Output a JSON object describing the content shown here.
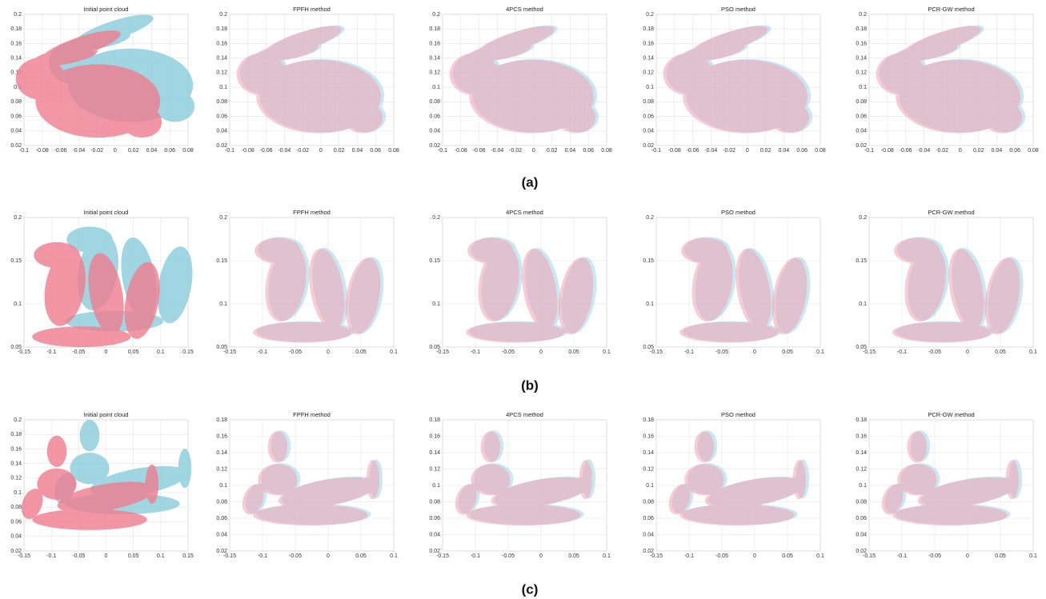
{
  "chart_data": [
    {
      "type": "scatter",
      "title": "Initial point cloud",
      "xlim": [
        -0.1,
        0.08
      ],
      "ylim": [
        0.02,
        0.2
      ],
      "xticks": [
        -0.1,
        -0.08,
        -0.06,
        -0.04,
        -0.02,
        0,
        0.02,
        0.04,
        0.06,
        0.08
      ],
      "yticks": [
        0.02,
        0.04,
        0.06,
        0.08,
        0.1,
        0.12,
        0.14,
        0.16,
        0.18,
        0.2
      ],
      "grid": true
    },
    {
      "type": "scatter",
      "title": "FPFH method",
      "xlim": [
        -0.1,
        0.08
      ],
      "ylim": [
        0.02,
        0.2
      ],
      "xticks": [
        -0.1,
        -0.08,
        -0.06,
        -0.04,
        -0.02,
        0,
        0.02,
        0.04,
        0.06,
        0.08
      ],
      "yticks": [
        0.02,
        0.04,
        0.06,
        0.08,
        0.1,
        0.12,
        0.14,
        0.16,
        0.18,
        0.2
      ],
      "grid": true
    },
    {
      "type": "scatter",
      "title": "4PCS method",
      "xlim": [
        -0.1,
        0.08
      ],
      "ylim": [
        0.02,
        0.2
      ],
      "xticks": [
        -0.1,
        -0.08,
        -0.06,
        -0.04,
        -0.02,
        0,
        0.02,
        0.04,
        0.06,
        0.08
      ],
      "yticks": [
        0.02,
        0.04,
        0.06,
        0.08,
        0.1,
        0.12,
        0.14,
        0.16,
        0.18,
        0.2
      ],
      "grid": true
    },
    {
      "type": "scatter",
      "title": "PSO method",
      "xlim": [
        -0.1,
        0.08
      ],
      "ylim": [
        0.02,
        0.2
      ],
      "xticks": [
        -0.1,
        -0.08,
        -0.06,
        -0.04,
        -0.02,
        0,
        0.02,
        0.04,
        0.06,
        0.08
      ],
      "yticks": [
        0.02,
        0.04,
        0.06,
        0.08,
        0.1,
        0.12,
        0.14,
        0.16,
        0.18,
        0.2
      ],
      "grid": true
    },
    {
      "type": "scatter",
      "title": "PCR-GW method",
      "xlim": [
        -0.1,
        0.08
      ],
      "ylim": [
        0.02,
        0.2
      ],
      "xticks": [
        -0.1,
        -0.08,
        -0.06,
        -0.04,
        -0.02,
        0,
        0.02,
        0.04,
        0.06,
        0.08
      ],
      "yticks": [
        0.02,
        0.04,
        0.06,
        0.08,
        0.1,
        0.12,
        0.14,
        0.16,
        0.18,
        0.2
      ],
      "grid": true
    },
    {
      "type": "scatter",
      "title": "Initial point cloud",
      "xlim": [
        -0.15,
        0.15
      ],
      "ylim": [
        0.05,
        0.2
      ],
      "xticks": [
        -0.15,
        -0.1,
        -0.05,
        0,
        0.05,
        0.1,
        0.15
      ],
      "yticks": [
        0.05,
        0.1,
        0.15,
        0.2
      ],
      "grid": true
    },
    {
      "type": "scatter",
      "title": "FPFH method",
      "xlim": [
        -0.15,
        0.1
      ],
      "ylim": [
        0.05,
        0.2
      ],
      "xticks": [
        -0.15,
        -0.1,
        -0.05,
        0,
        0.05,
        0.1
      ],
      "yticks": [
        0.05,
        0.1,
        0.15,
        0.2
      ],
      "grid": true
    },
    {
      "type": "scatter",
      "title": "4PCS method",
      "xlim": [
        -0.15,
        0.1
      ],
      "ylim": [
        0.05,
        0.2
      ],
      "xticks": [
        -0.15,
        -0.1,
        -0.05,
        0,
        0.05,
        0.1
      ],
      "yticks": [
        0.05,
        0.1,
        0.15,
        0.2
      ],
      "grid": true
    },
    {
      "type": "scatter",
      "title": "PSO method",
      "xlim": [
        -0.15,
        0.1
      ],
      "ylim": [
        0.05,
        0.2
      ],
      "xticks": [
        -0.15,
        -0.1,
        -0.05,
        0,
        0.05,
        0.1
      ],
      "yticks": [
        0.05,
        0.1,
        0.15,
        0.2
      ],
      "grid": true
    },
    {
      "type": "scatter",
      "title": "PCR-GW method",
      "xlim": [
        -0.15,
        0.1
      ],
      "ylim": [
        0.05,
        0.2
      ],
      "xticks": [
        -0.15,
        -0.1,
        -0.05,
        0,
        0.05,
        0.1
      ],
      "yticks": [
        0.05,
        0.1,
        0.15,
        0.2
      ],
      "grid": true
    },
    {
      "type": "scatter",
      "title": "Initial point cloud",
      "xlim": [
        -0.15,
        0.15
      ],
      "ylim": [
        0.02,
        0.2
      ],
      "xticks": [
        -0.15,
        -0.1,
        -0.05,
        0,
        0.05,
        0.1,
        0.15
      ],
      "yticks": [
        0.02,
        0.04,
        0.06,
        0.08,
        0.1,
        0.12,
        0.14,
        0.16,
        0.18,
        0.2
      ],
      "grid": true
    },
    {
      "type": "scatter",
      "title": "FPFH method",
      "xlim": [
        -0.15,
        0.1
      ],
      "ylim": [
        0.02,
        0.18
      ],
      "xticks": [
        -0.15,
        -0.1,
        -0.05,
        0,
        0.05,
        0.1
      ],
      "yticks": [
        0.02,
        0.04,
        0.06,
        0.08,
        0.1,
        0.12,
        0.14,
        0.16,
        0.18
      ],
      "grid": true
    },
    {
      "type": "scatter",
      "title": "4PCS method",
      "xlim": [
        -0.15,
        0.1
      ],
      "ylim": [
        0.02,
        0.18
      ],
      "xticks": [
        -0.15,
        -0.1,
        -0.05,
        0,
        0.05,
        0.1
      ],
      "yticks": [
        0.02,
        0.04,
        0.06,
        0.08,
        0.1,
        0.12,
        0.14,
        0.16,
        0.18
      ],
      "grid": true
    },
    {
      "type": "scatter",
      "title": "PSO method",
      "xlim": [
        -0.15,
        0.1
      ],
      "ylim": [
        0.02,
        0.18
      ],
      "xticks": [
        -0.15,
        -0.1,
        -0.05,
        0,
        0.05,
        0.1
      ],
      "yticks": [
        0.02,
        0.04,
        0.06,
        0.08,
        0.1,
        0.12,
        0.14,
        0.16,
        0.18
      ],
      "grid": true
    },
    {
      "type": "scatter",
      "title": "PCR-GW method",
      "xlim": [
        -0.15,
        0.1
      ],
      "ylim": [
        0.02,
        0.18
      ],
      "xticks": [
        -0.15,
        -0.1,
        -0.05,
        0,
        0.05,
        0.1
      ],
      "yticks": [
        0.02,
        0.04,
        0.06,
        0.08,
        0.1,
        0.12,
        0.14,
        0.16,
        0.18
      ],
      "grid": true
    }
  ],
  "panel_labels": [
    "(a)",
    "(b)",
    "(c)"
  ]
}
